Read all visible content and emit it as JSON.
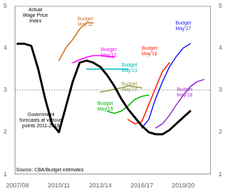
{
  "chart_data": {
    "type": "line",
    "xlim": [
      2007.3,
      2021.5
    ],
    "xticks": [
      {
        "value": 2007.5,
        "label": "2007/08"
      },
      {
        "value": 2010.5,
        "label": "2010/11"
      },
      {
        "value": 2013.5,
        "label": "2013/14"
      },
      {
        "value": 2016.5,
        "label": "2016/17"
      },
      {
        "value": 2019.5,
        "label": "2019/20"
      }
    ],
    "ylim": [
      1,
      5
    ],
    "yticks": [
      1,
      2,
      3,
      4,
      5
    ],
    "y2lim": [
      1,
      5
    ],
    "y2ticks": [
      1,
      2,
      3,
      4,
      5
    ],
    "hline": 3,
    "series": [
      {
        "name": "Actual\nWage Price\nIndex",
        "color": "#000000",
        "x": [
          2007.5,
          2008.0,
          2008.5,
          2009.0,
          2009.5,
          2010.0,
          2010.5,
          2011.0,
          2011.5,
          2012.0,
          2012.5,
          2013.0,
          2013.5,
          2014.0,
          2014.5,
          2015.0,
          2015.5,
          2016.0,
          2016.5,
          2017.0,
          2017.5,
          2018.0,
          2018.5,
          2019.0,
          2019.5,
          2020.0
        ],
        "values": [
          4.1,
          4.1,
          4.05,
          3.5,
          2.8,
          2.2,
          2.0,
          2.6,
          3.2,
          3.65,
          3.7,
          3.65,
          3.55,
          3.35,
          3.1,
          2.8,
          2.55,
          2.35,
          2.15,
          2.0,
          1.95,
          1.95,
          2.05,
          2.2,
          2.35,
          2.5
        ]
      },
      {
        "name": "Budget\nMay'11",
        "color": "#cc7722",
        "x": [
          2010.5,
          2011.0,
          2011.5,
          2012.0,
          2012.5,
          2013.0
        ],
        "values": [
          3.7,
          4.0,
          4.2,
          4.45,
          4.6,
          4.6
        ]
      },
      {
        "name": "Budget\nMay'12",
        "color": "#ff00ff",
        "x": [
          2011.5,
          2012.0,
          2012.5,
          2013.0,
          2013.5,
          2014.0,
          2014.5
        ],
        "values": [
          3.65,
          3.72,
          3.78,
          3.82,
          3.82,
          3.8,
          3.78
        ]
      },
      {
        "name": "Budget\nMay'13",
        "color": "#00bbbb",
        "x": [
          2012.5,
          2013.0,
          2013.5,
          2014.0,
          2014.5,
          2015.0,
          2015.5
        ],
        "values": [
          3.5,
          3.5,
          3.5,
          3.5,
          3.5,
          3.5,
          3.5
        ]
      },
      {
        "name": "Budget\nMay'14",
        "color": "#999944",
        "x": [
          2013.5,
          2014.0,
          2014.5,
          2015.0,
          2015.5,
          2016.0,
          2016.5
        ],
        "values": [
          2.95,
          2.98,
          3.02,
          3.05,
          3.1,
          3.08,
          3.05
        ]
      },
      {
        "name": "Budget\nMay'15",
        "color": "#00bb00",
        "x": [
          2014.0,
          2014.5,
          2015.0,
          2015.5,
          2016.0,
          2016.5,
          2017.0
        ],
        "values": [
          2.5,
          2.45,
          2.5,
          2.62,
          2.78,
          2.85,
          2.88
        ]
      },
      {
        "name": "Budget\nMay'16",
        "color": "#ff2200",
        "x": [
          2015.5,
          2016.0,
          2016.5,
          2017.0,
          2017.5,
          2018.0,
          2018.5
        ],
        "values": [
          2.3,
          2.2,
          2.25,
          2.65,
          3.05,
          3.45,
          3.65
        ]
      },
      {
        "name": "Budget\nMay'17",
        "color": "#2222ff",
        "x": [
          2016.5,
          2017.0,
          2017.5,
          2018.0,
          2018.5,
          2019.0,
          2019.5,
          2020.0
        ],
        "values": [
          2.1,
          2.3,
          2.8,
          3.2,
          3.55,
          3.8,
          4.0,
          4.1
        ]
      },
      {
        "name": "Budget\nMay'18",
        "color": "#9933cc",
        "x": [
          2017.5,
          2018.0,
          2018.5,
          2019.0,
          2019.5,
          2020.0,
          2020.5,
          2021.0
        ],
        "values": [
          2.1,
          2.2,
          2.4,
          2.65,
          2.88,
          3.08,
          3.2,
          3.25
        ]
      }
    ],
    "annotations": [
      {
        "text": "Budget\nMay'11",
        "x": 2012.4,
        "y": 4.62,
        "color": "#cc7722"
      },
      {
        "text": "Budget\nMay'12",
        "x": 2014.1,
        "y": 3.9,
        "color": "#ff00ff"
      },
      {
        "text": "Budget\nMay'13",
        "x": 2015.6,
        "y": 3.52,
        "color": "#00bbbb"
      },
      {
        "text": "Budget\nMay'14",
        "x": 2015.6,
        "y": 3.08,
        "color": "#999944"
      },
      {
        "text": "Budget\nMay'15",
        "x": 2013.85,
        "y": 2.62,
        "color": "#00bb00"
      },
      {
        "text": "Budget\nMay'16",
        "x": 2017.05,
        "y": 3.92,
        "color": "#ff2200"
      },
      {
        "text": "Budget\nMay'17",
        "x": 2019.5,
        "y": 4.52,
        "color": "#2222ff"
      },
      {
        "text": "Budget\nMay'18",
        "x": 2019.6,
        "y": 2.95,
        "color": "#9933cc"
      },
      {
        "text": "Actual\nWage Price\nIndex",
        "x": 2008.8,
        "y": 4.82,
        "color": "#000000"
      },
      {
        "text": "Government\nforecasts at various\npoints 2011-2018",
        "x": 2009.2,
        "y": 2.28,
        "color": "#000000"
      },
      {
        "text": "Source: CBA/Budget estimates",
        "x": 2007.4,
        "y": 1.03,
        "color": "#000000"
      }
    ]
  }
}
